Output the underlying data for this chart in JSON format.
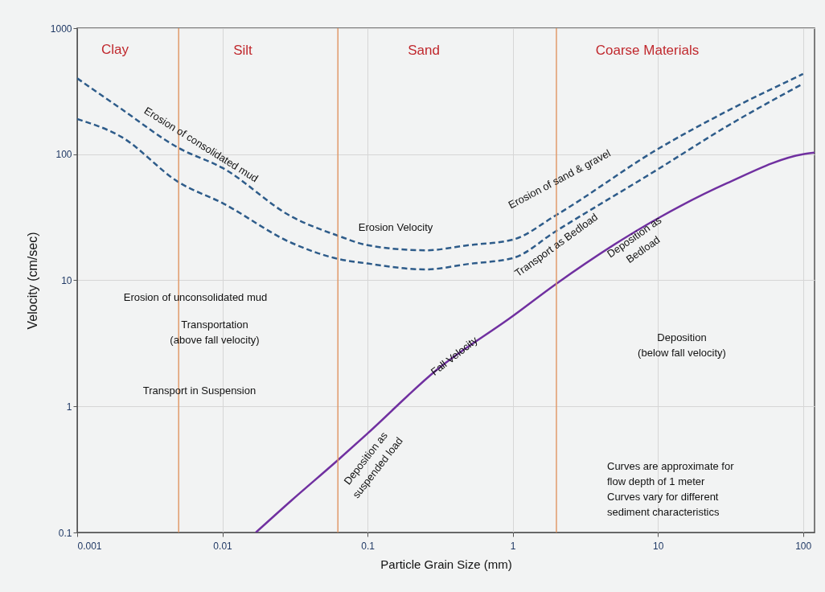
{
  "chart_data": {
    "type": "line",
    "xlabel": "Particle Grain Size (mm)",
    "ylabel": "Velocity (cm/sec)",
    "log": "xy",
    "grid": true,
    "xlim": [
      0.001,
      120
    ],
    "xticks": [
      0.001,
      0.01,
      0.1,
      1,
      10,
      100
    ],
    "ylim": [
      0.1,
      1000
    ],
    "yticks": [
      0.1,
      1,
      10,
      100,
      1000
    ],
    "x": [
      0.001,
      0.002,
      0.005,
      0.01,
      0.03,
      0.0625,
      0.1,
      0.25,
      0.5,
      1,
      2,
      10,
      30,
      100
    ],
    "series": [
      {
        "color": "#2e5c8a",
        "line_style": "dashed",
        "values": [
          400,
          230,
          112,
          78,
          32,
          22.6,
          19,
          17.3,
          19,
          21,
          33,
          110,
          220,
          433
        ]
      },
      {
        "color": "#2e5c8a",
        "line_style": "dashed",
        "values": [
          190,
          138,
          60,
          41,
          19.8,
          14.8,
          13.6,
          12.2,
          13.5,
          15,
          24.7,
          76,
          167,
          363
        ]
      },
      {
        "color": "#7030a0",
        "line_style": "solid",
        "x": [
          0.017,
          0.03,
          0.0625,
          0.1,
          0.3,
          1,
          2,
          10,
          30,
          100,
          120
        ],
        "values": [
          0.1,
          0.18,
          0.375,
          0.61,
          1.95,
          5.2,
          9.4,
          31,
          59,
          100,
          103
        ]
      }
    ],
    "ref_lines": [
      {
        "axis": "x",
        "value": 0.005,
        "color": "#e09a6a"
      },
      {
        "axis": "x",
        "value": 0.0625,
        "color": "#e09a6a"
      },
      {
        "axis": "x",
        "value": 2,
        "color": "#e09a6a"
      }
    ],
    "annotations": [
      "Clay",
      "Silt",
      "Sand",
      "Coarse Materials",
      "Erosion of consolidated mud",
      "Erosion Velocity",
      "Erosion of sand & gravel",
      "Transport as Bedload",
      "Deposition as\nBedload",
      "Erosion of unconsolidated mud",
      "Transportation\n(above fall velocity)",
      "Transport in Suspension",
      "Fall Velocity",
      "Deposition as\nsuspended load",
      "Deposition\n(below fall velocity)",
      "Curves are approximate  for\nflow depth of 1 meter\nCurves vary for different\nsediment characteristics"
    ]
  }
}
